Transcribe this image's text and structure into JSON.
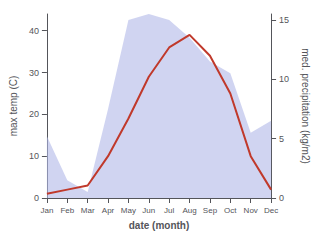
{
  "chart_data": {
    "type": "line",
    "xlabel": "date (month)",
    "ylabel": "max temp (C)",
    "y2label": "med. precipitation (kg/m2)",
    "categories": [
      "Jan",
      "Feb",
      "Mar",
      "Apr",
      "May",
      "Jun",
      "Jul",
      "Aug",
      "Sep",
      "Oct",
      "Nov",
      "Dec"
    ],
    "series": [
      {
        "type": "area",
        "color": "#b0b8e8",
        "axis": "y2",
        "values": [
          5.2,
          1.5,
          0.5,
          7.5,
          15.0,
          15.5,
          15.0,
          13.5,
          11.5,
          10.5,
          5.5,
          6.5
        ]
      },
      {
        "type": "line",
        "color": "#c0392b",
        "values": [
          1,
          2,
          3,
          10,
          19,
          29,
          36,
          39,
          34,
          25,
          10,
          2
        ]
      }
    ],
    "ylim": [
      0,
      44
    ],
    "yticks": [
      0,
      10,
      20,
      30,
      40
    ],
    "y2lim": [
      0,
      15.5
    ],
    "y2ticks": [
      0,
      5,
      10,
      15
    ],
    "grid": false
  }
}
